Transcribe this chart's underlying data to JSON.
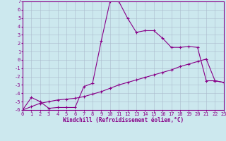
{
  "xlabel": "Windchill (Refroidissement éolien,°C)",
  "xlim": [
    0,
    23
  ],
  "ylim": [
    -6,
    7
  ],
  "xticks": [
    0,
    1,
    2,
    3,
    4,
    5,
    6,
    7,
    8,
    9,
    10,
    11,
    12,
    13,
    14,
    15,
    16,
    17,
    18,
    19,
    20,
    21,
    22,
    23
  ],
  "yticks": [
    -6,
    -5,
    -4,
    -3,
    -2,
    -1,
    0,
    1,
    2,
    3,
    4,
    5,
    6,
    7
  ],
  "background_color": "#cce8ee",
  "line_color": "#880088",
  "grid_color": "#aabbcc",
  "curve1_x": [
    0,
    1,
    2,
    3,
    4,
    5,
    6,
    7,
    8,
    9,
    10,
    11,
    12,
    13,
    14,
    15,
    16,
    17,
    18,
    19,
    20,
    21,
    22,
    23
  ],
  "curve1_y": [
    -6.0,
    -4.5,
    -5.0,
    -5.8,
    -5.7,
    -5.7,
    -5.7,
    -3.2,
    -2.8,
    2.3,
    7.0,
    7.0,
    5.0,
    3.3,
    3.5,
    3.5,
    2.6,
    1.5,
    1.5,
    1.6,
    1.5,
    -2.5,
    -2.5,
    -2.7
  ],
  "curve2_x": [
    0,
    1,
    2,
    3,
    4,
    5,
    6,
    7,
    8,
    9,
    10,
    11,
    12,
    13,
    14,
    15,
    16,
    17,
    18,
    19,
    20,
    21,
    22,
    23
  ],
  "curve2_y": [
    -6.0,
    -5.6,
    -5.2,
    -5.0,
    -4.8,
    -4.7,
    -4.6,
    -4.4,
    -4.1,
    -3.8,
    -3.4,
    -3.0,
    -2.7,
    -2.4,
    -2.1,
    -1.8,
    -1.5,
    -1.2,
    -0.8,
    -0.5,
    -0.2,
    0.1,
    -2.5,
    -2.7
  ],
  "tick_fontsize": 5,
  "xlabel_fontsize": 5.5,
  "tick_fontfamily": "monospace",
  "xlabel_fontfamily": "monospace"
}
